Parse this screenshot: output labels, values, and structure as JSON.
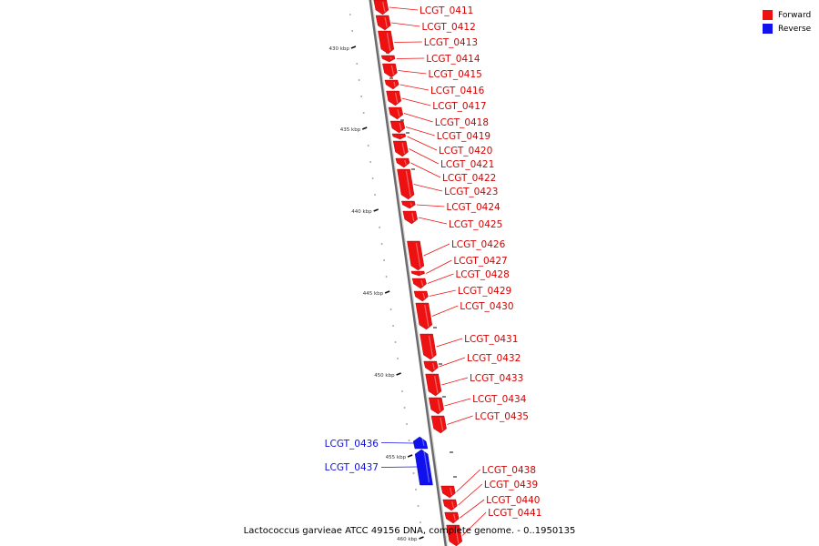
{
  "caption": "Lactococcus garvieae ATCC 49156 DNA, complete genome. - 0..1950135",
  "legend": [
    {
      "label": "Forward",
      "color": "#ee1111"
    },
    {
      "label": "Reverse",
      "color": "#1111ee"
    }
  ],
  "ticks": [
    {
      "label": "430 kbp"
    },
    {
      "label": "435 kbp"
    },
    {
      "label": "440 kbp"
    },
    {
      "label": "445 kbp"
    },
    {
      "label": "450 kbp"
    },
    {
      "label": "455 kbp"
    },
    {
      "label": "460 kbp"
    }
  ],
  "genes": [
    {
      "name": "LCGT_0411",
      "strand": "forward"
    },
    {
      "name": "LCGT_0412",
      "strand": "forward"
    },
    {
      "name": "LCGT_0413",
      "strand": "forward"
    },
    {
      "name": "LCGT_0414",
      "strand": "forward"
    },
    {
      "name": "LCGT_0415",
      "strand": "forward"
    },
    {
      "name": "LCGT_0416",
      "strand": "forward"
    },
    {
      "name": "LCGT_0417",
      "strand": "forward"
    },
    {
      "name": "LCGT_0418",
      "strand": "forward"
    },
    {
      "name": "LCGT_0419",
      "strand": "forward"
    },
    {
      "name": "LCGT_0420",
      "strand": "forward"
    },
    {
      "name": "LCGT_0421",
      "strand": "forward"
    },
    {
      "name": "LCGT_0422",
      "strand": "forward"
    },
    {
      "name": "LCGT_0423",
      "strand": "forward"
    },
    {
      "name": "LCGT_0424",
      "strand": "forward"
    },
    {
      "name": "LCGT_0425",
      "strand": "forward"
    },
    {
      "name": "LCGT_0426",
      "strand": "forward"
    },
    {
      "name": "LCGT_0427",
      "strand": "forward"
    },
    {
      "name": "LCGT_0428",
      "strand": "forward"
    },
    {
      "name": "LCGT_0429",
      "strand": "forward"
    },
    {
      "name": "LCGT_0430",
      "strand": "forward"
    },
    {
      "name": "LCGT_0431",
      "strand": "forward"
    },
    {
      "name": "LCGT_0432",
      "strand": "forward"
    },
    {
      "name": "LCGT_0433",
      "strand": "forward"
    },
    {
      "name": "LCGT_0434",
      "strand": "forward"
    },
    {
      "name": "LCGT_0435",
      "strand": "forward"
    },
    {
      "name": "LCGT_0436",
      "strand": "reverse"
    },
    {
      "name": "LCGT_0437",
      "strand": "reverse"
    },
    {
      "name": "LCGT_0438",
      "strand": "forward"
    },
    {
      "name": "LCGT_0439",
      "strand": "forward"
    },
    {
      "name": "LCGT_0440",
      "strand": "forward"
    },
    {
      "name": "LCGT_0441",
      "strand": "forward"
    }
  ]
}
